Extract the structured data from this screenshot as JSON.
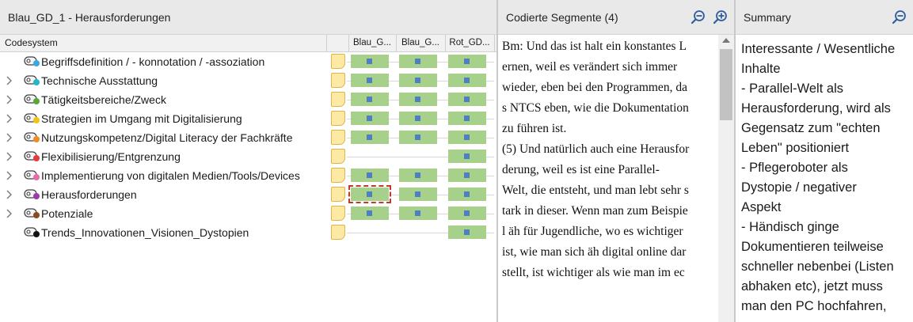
{
  "left_panel": {
    "title": "Blau_GD_1 - Herausforderungen",
    "codesystem_label": "Codesystem",
    "column_headers": [
      "Blau_G...",
      "Blau_G...",
      "Rot_GD..."
    ],
    "rows": [
      {
        "label": "Begriffsdefinition / - konnotation / -assoziation",
        "color": "#3aa8e0",
        "expandable": false,
        "cells": [
          true,
          true,
          true
        ],
        "selected": -1
      },
      {
        "label": "Technische Ausstattung",
        "color": "#26b5c6",
        "expandable": true,
        "cells": [
          true,
          true,
          true
        ],
        "selected": -1
      },
      {
        "label": "Tätigkeitsbereiche/Zweck",
        "color": "#5aa636",
        "expandable": true,
        "cells": [
          true,
          true,
          true
        ],
        "selected": -1
      },
      {
        "label": "Strategien im Umgang mit Digitalisierung",
        "color": "#f0c419",
        "expandable": true,
        "cells": [
          true,
          true,
          true
        ],
        "selected": -1
      },
      {
        "label": "Nutzungskompetenz/Digital Literacy der Fachkräfte",
        "color": "#f08a24",
        "expandable": true,
        "cells": [
          true,
          true,
          true
        ],
        "selected": -1
      },
      {
        "label": "Flexibilisierung/Entgrenzung",
        "color": "#e23b3b",
        "expandable": true,
        "cells": [
          false,
          false,
          true
        ],
        "selected": -1
      },
      {
        "label": "Implementierung von digitalen Medien/Tools/Devices",
        "color": "#e86aa6",
        "expandable": true,
        "cells": [
          true,
          true,
          true
        ],
        "selected": -1
      },
      {
        "label": "Herausforderungen",
        "color": "#9b3aa8",
        "expandable": true,
        "cells": [
          true,
          true,
          true
        ],
        "selected": 0
      },
      {
        "label": "Potenziale",
        "color": "#8a4a22",
        "expandable": true,
        "cells": [
          true,
          true,
          true
        ],
        "selected": -1
      },
      {
        "label": "Trends_Innovationen_Visionen_Dystopien",
        "color": "#111111",
        "expandable": false,
        "cells": [
          false,
          false,
          true
        ],
        "selected": -1
      }
    ]
  },
  "middle_panel": {
    "title": "Codierte Segmente (4)",
    "lines": [
      "Bm: Und das ist halt ein konstantes L",
      "ernen, weil es verändert sich immer",
      "wieder, eben bei den Programmen, da",
      "s NTCS eben, wie die Dokumentation",
      " zu führen ist.",
      "(5) Und natürlich auch eine Herausfor",
      "derung, weil es ist eine Parallel-",
      "Welt, die entsteht, und man lebt sehr s",
      "tark in dieser. Wenn man zum Beispie",
      "l äh für Jugendliche, wo es wichtiger",
      "ist, wie man sich äh digital online dar",
      "stellt, ist wichtiger als wie man im ec"
    ]
  },
  "right_panel": {
    "title": "Summary",
    "lines": [
      "Interessante / Wesentliche",
      "Inhalte",
      "- Parallel-Welt als",
      "Herausforderung, wird als",
      "Gegensatz zum \"echten",
      "Leben\" positioniert",
      "- Pflegeroboter als",
      "Dystopie / negativer",
      "Aspekt",
      "- Händisch ginge",
      "Dokumentieren teilweise",
      "schneller nebenbei (Listen",
      "abhaken etc), jetzt muss",
      "man den PC hochfahren,"
    ]
  },
  "icons": {
    "zoom_out": "zoom-out-icon",
    "zoom_in": "zoom-in-icon",
    "code": "code-tag-icon",
    "memo": "memo-icon",
    "chevron": "chevron-right-icon"
  }
}
